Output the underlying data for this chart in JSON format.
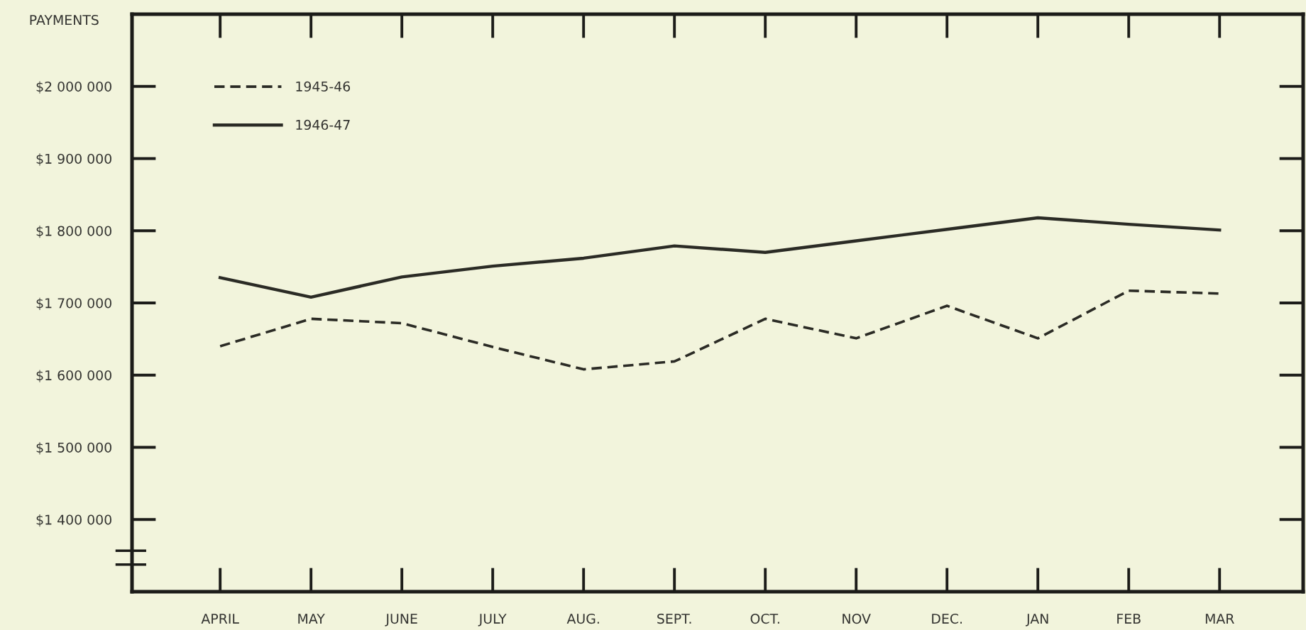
{
  "chart_data": {
    "type": "line",
    "ylabel": "PAYMENTS",
    "categories": [
      "APRIL",
      "MAY",
      "JUNE",
      "JULY",
      "AUG.",
      "SEPT.",
      "OCT.",
      "NOV",
      "DEC.",
      "JAN",
      "FEB",
      "MAR"
    ],
    "series": [
      {
        "name": "1945-46",
        "color": "#2b2b25",
        "line_style": "dashed",
        "values": [
          1640000,
          1678000,
          1672000,
          1639000,
          1608000,
          1619000,
          1678000,
          1651000,
          1696000,
          1651000,
          1717000,
          1713000
        ]
      },
      {
        "name": "1946-47",
        "color": "#2b2b25",
        "line_style": "solid",
        "values": [
          1735000,
          1708000,
          1736000,
          1751000,
          1762000,
          1779000,
          1770000,
          1786000,
          1802000,
          1818000,
          1809000,
          1801000
        ]
      }
    ],
    "ylim": [
      1300000,
      2100000
    ],
    "yticks": [
      {
        "value": 1400000,
        "label": "$1 400 000"
      },
      {
        "value": 1500000,
        "label": "$1 500 000"
      },
      {
        "value": 1600000,
        "label": "$1 600 000"
      },
      {
        "value": 1700000,
        "label": "$1 700 000"
      },
      {
        "value": 1800000,
        "label": "$1 800 000"
      },
      {
        "value": 1900000,
        "label": "$1 900 000"
      },
      {
        "value": 2000000,
        "label": "$2 000 000"
      }
    ],
    "grid": false,
    "legend": "top left",
    "marker": "none"
  }
}
